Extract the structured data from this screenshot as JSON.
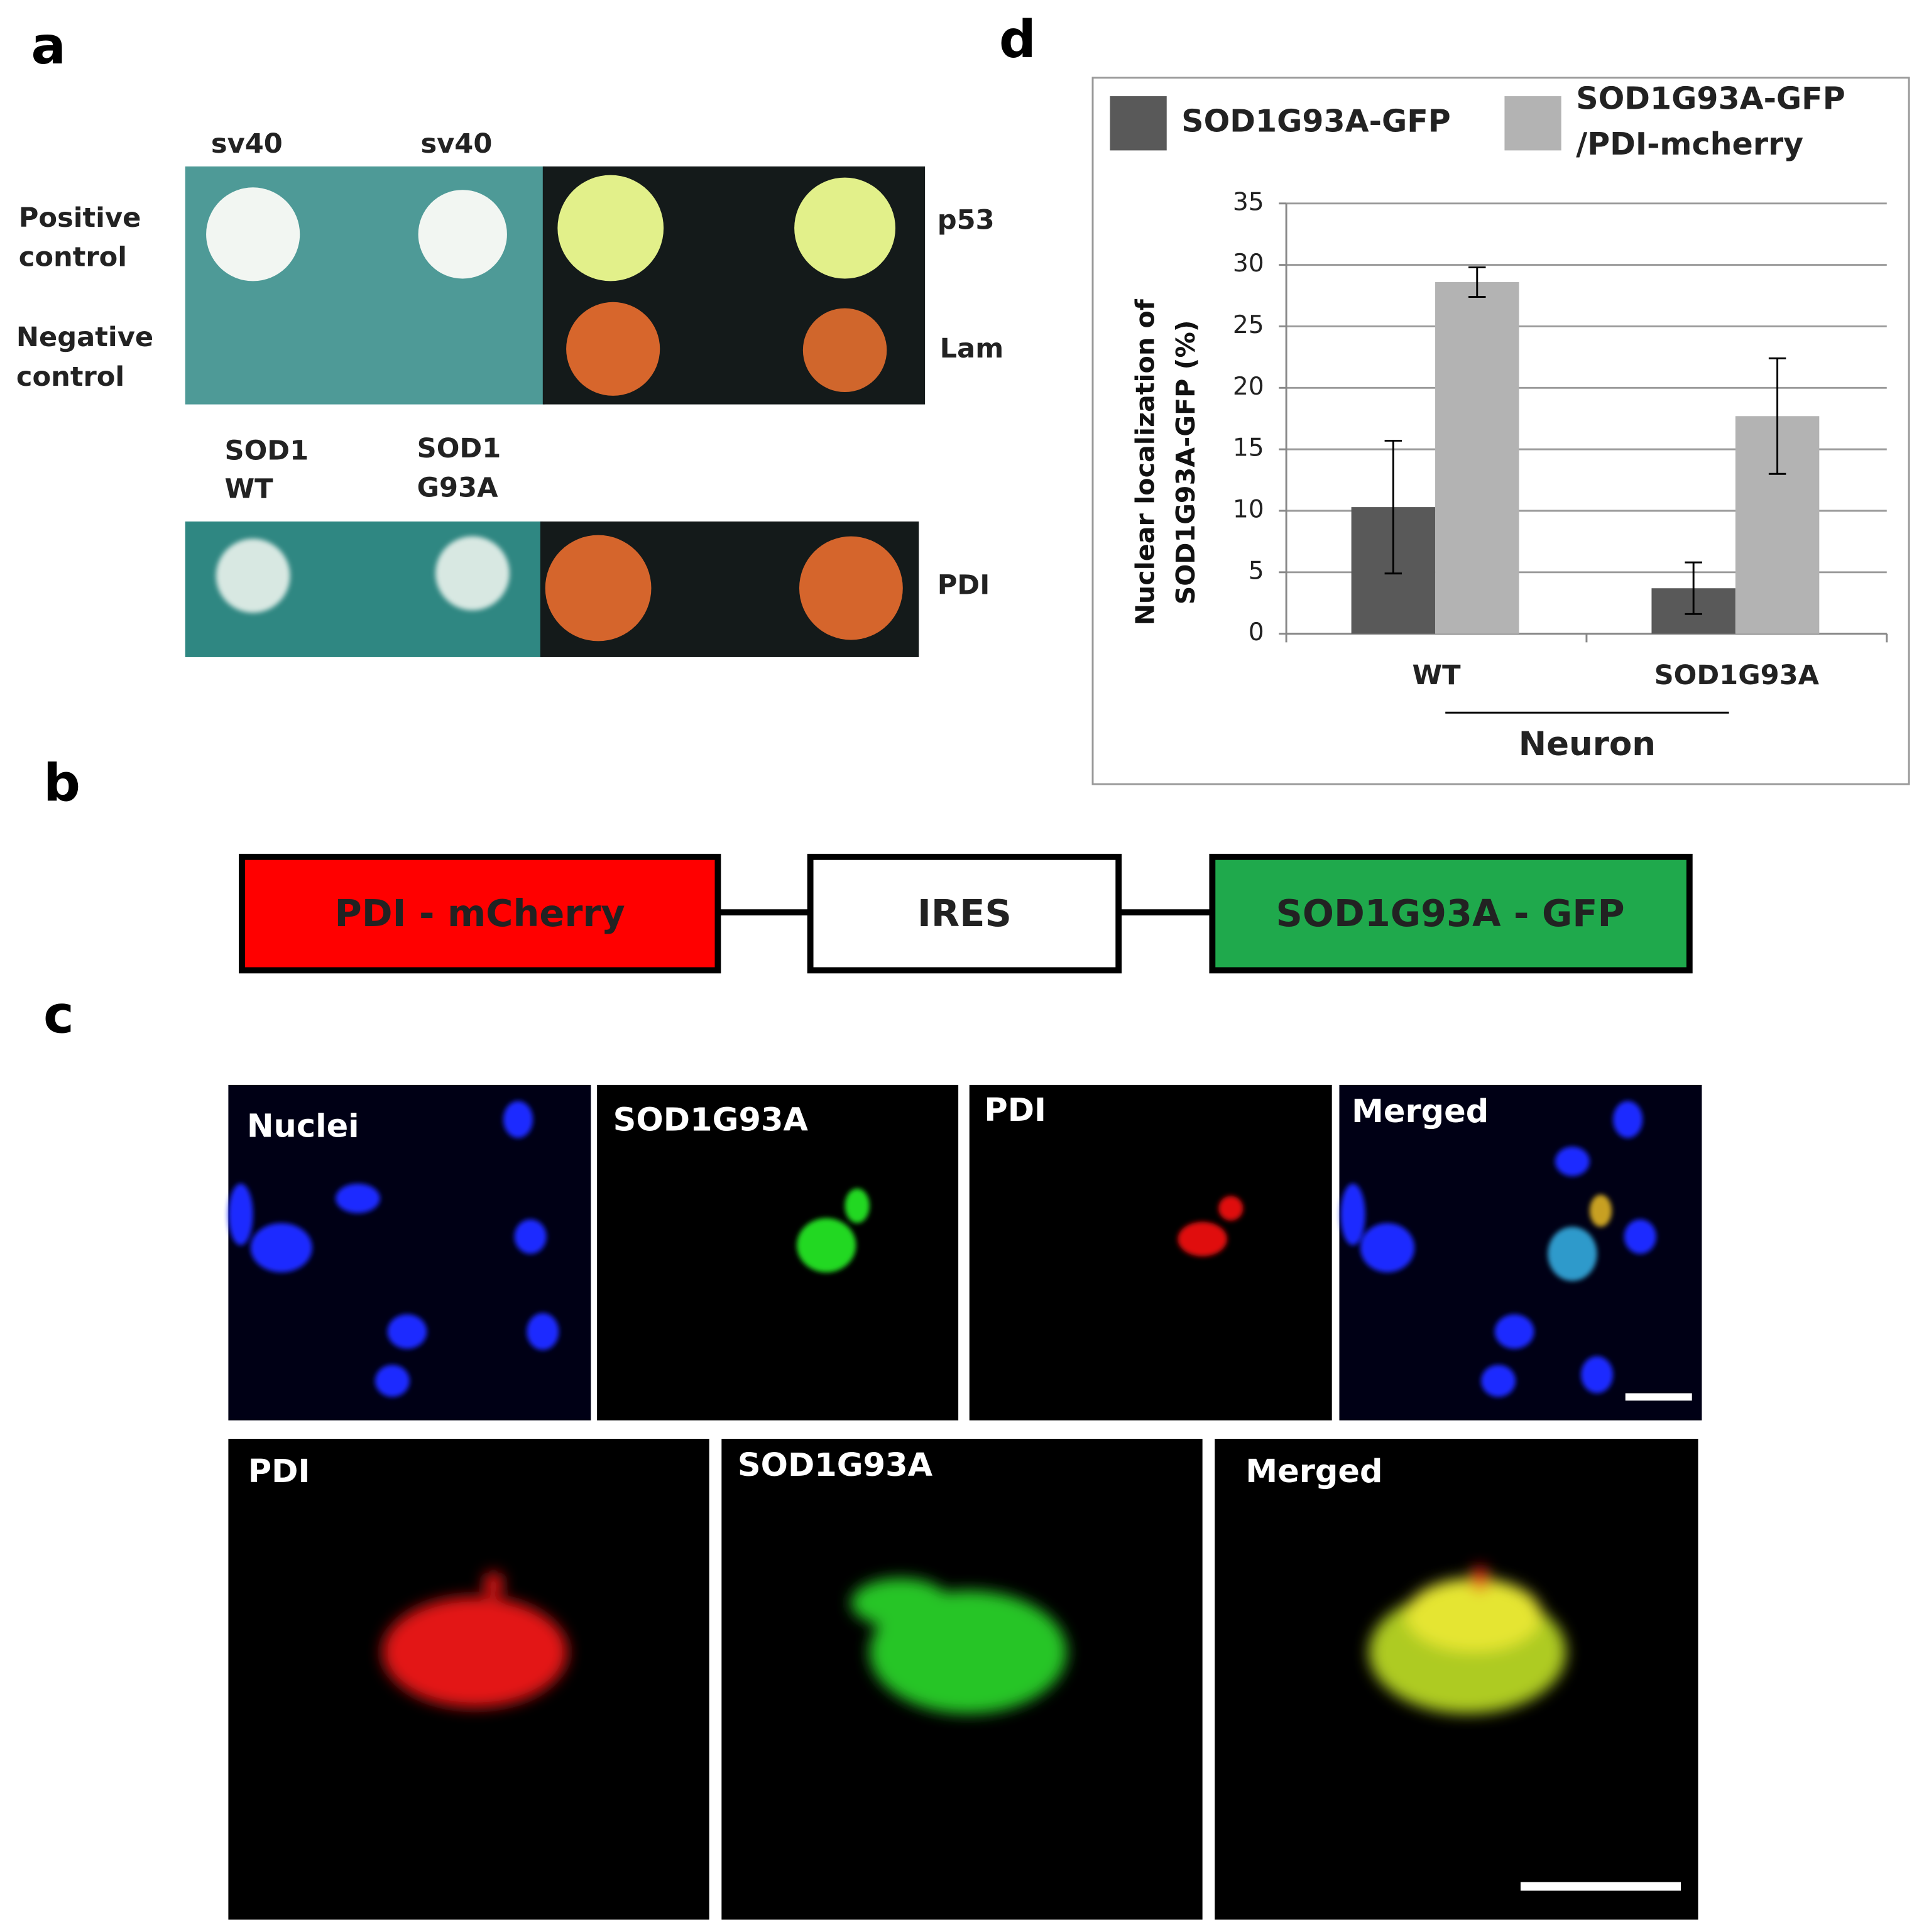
{
  "panel_labels": [
    "a",
    "b",
    "c",
    "d"
  ],
  "panel_a": {
    "top_column_labels": [
      "sv40",
      "sv40"
    ],
    "row_labels": [
      [
        "Positive",
        "control"
      ],
      [
        "Negative",
        "control"
      ]
    ],
    "right_labels": [
      "p53",
      "Lam",
      "PDI"
    ],
    "bottom_column_labels": [
      [
        "SOD1",
        "WT"
      ],
      [
        "SOD1",
        "G93A"
      ]
    ]
  },
  "panel_b": {
    "boxes": [
      "PDI - mCherry",
      "IRES",
      "SOD1G93A - GFP"
    ]
  },
  "panel_c": {
    "top_row_labels": [
      "Nuclei",
      "SOD1G93A",
      "PDI",
      "Merged"
    ],
    "bottom_row_labels": [
      "PDI",
      "SOD1G93A",
      "Merged"
    ]
  },
  "chart_data": {
    "type": "bar",
    "ylabel": [
      "Nuclear localization of",
      "SOD1G93A-GFP  (%)"
    ],
    "categories": [
      "WT",
      "SOD1G93A"
    ],
    "group_label": "Neuron",
    "series": [
      {
        "name": [
          "SOD1G93A-GFP"
        ],
        "color": "#595959",
        "values": [
          10.3,
          3.7
        ],
        "errors": [
          5.4,
          2.1
        ]
      },
      {
        "name": [
          "SOD1G93A-GFP",
          "/PDI-mcherry"
        ],
        "color": "#b3b3b3",
        "values": [
          28.6,
          17.7
        ],
        "errors": [
          1.2,
          4.7
        ]
      }
    ],
    "ylim": [
      0,
      35
    ],
    "yticks": [
      0,
      5,
      10,
      15,
      20,
      25,
      30,
      35
    ],
    "grid": true
  }
}
